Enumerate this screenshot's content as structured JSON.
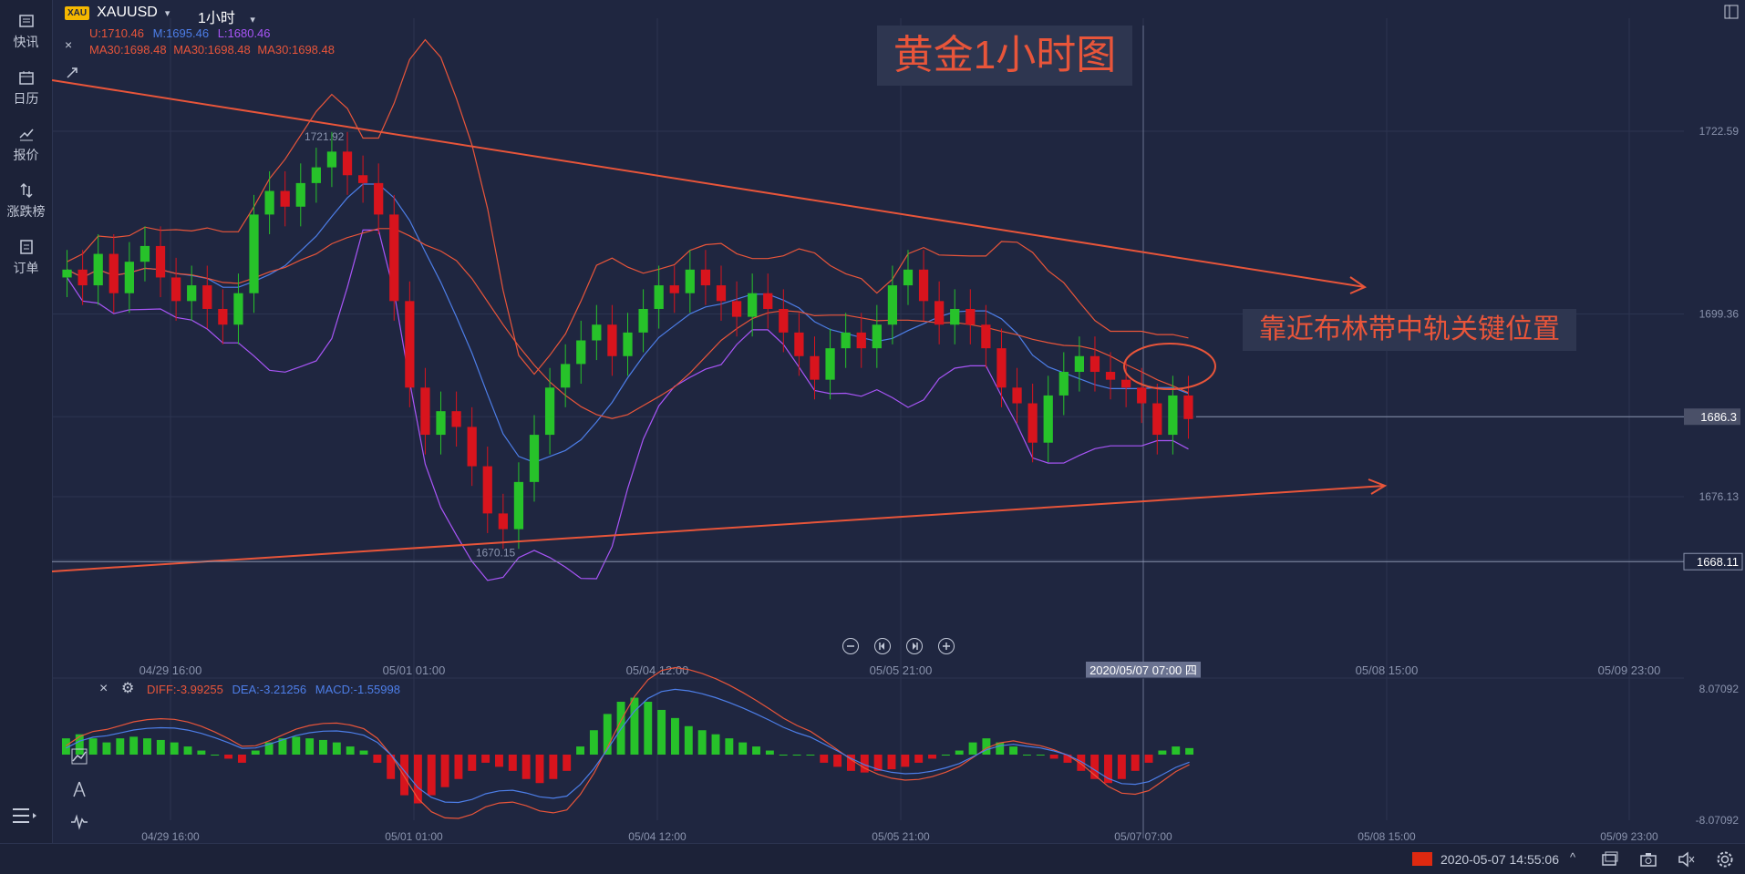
{
  "sidebar": {
    "items": [
      {
        "label": "快讯",
        "icon": "news-icon"
      },
      {
        "label": "日历",
        "icon": "calendar-icon"
      },
      {
        "label": "报价",
        "icon": "quote-chart-icon"
      },
      {
        "label": "涨跌榜",
        "icon": "updown-arrows-icon"
      },
      {
        "label": "订单",
        "icon": "order-icon"
      }
    ],
    "menu_icon": "menu-icon"
  },
  "toolbar": {
    "badge": "XAU",
    "symbol": "XAUUSD",
    "interval": "1小时"
  },
  "indicators": {
    "bb": {
      "u": "U:1710.46",
      "m": "M:1695.46",
      "l": "L:1680.46",
      "u_color": "#e8553a",
      "m_color": "#4d7ee8",
      "l_color": "#a855f7"
    },
    "ma": [
      "MA30:1698.48",
      "MA30:1698.48",
      "MA30:1698.48"
    ],
    "macd": {
      "diff": "DIFF:-3.99255",
      "dea": "DEA:-3.21256",
      "macd": "MACD:-1.55998"
    }
  },
  "annotations": {
    "title": "黄金1小时图",
    "note": "靠近布林带中轨关键位置"
  },
  "status": {
    "datetime": "2020-05-07 14:55:06",
    "flag": "china-flag-icon"
  },
  "colors": {
    "bull": "#27c22a",
    "bear": "#d8141d",
    "accent": "#e8553a",
    "background": "#1f2640",
    "grid": "#2c3450"
  },
  "chart_data": [
    {
      "type": "candlestick",
      "symbol": "XAUUSD",
      "interval": "1小时",
      "y_ticks": [
        1722.59,
        1699.36,
        1686.3,
        1676.13,
        1668.11
      ],
      "ylim": [
        1655,
        1730
      ],
      "x_ticks": [
        "04/29 16:00",
        "05/01 01:00",
        "05/04 12:00",
        "05/05 21:00",
        "2020/05/07 07:00 四",
        "05/08 15:00",
        "05/09 23:00"
      ],
      "high_label": "1721.92",
      "low_label": "1670.15",
      "current_price": "1686.3",
      "horizontal_level": "1668.11",
      "close_series": [
        1705,
        1703,
        1707,
        1702,
        1706,
        1708,
        1704,
        1701,
        1703,
        1700,
        1698,
        1702,
        1712,
        1715,
        1713,
        1716,
        1718,
        1720,
        1717,
        1716,
        1712,
        1701,
        1690,
        1684,
        1687,
        1685,
        1680,
        1674,
        1672,
        1678,
        1684,
        1690,
        1693,
        1696,
        1698,
        1694,
        1697,
        1700,
        1703,
        1702,
        1705,
        1703,
        1701,
        1699,
        1702,
        1700,
        1697,
        1694,
        1691,
        1695,
        1697,
        1695,
        1698,
        1703,
        1705,
        1701,
        1698,
        1700,
        1698,
        1695,
        1690,
        1688,
        1683,
        1689,
        1692,
        1694,
        1692,
        1691,
        1690,
        1688,
        1684,
        1689,
        1686
      ],
      "bollinger": {
        "upper": "U:1710.46",
        "middle": "M:1695.46",
        "lower": "L:1680.46"
      },
      "trendlines": [
        "descending resistance",
        "ascending support"
      ]
    },
    {
      "type": "bar",
      "name": "MACD",
      "y_ticks": [
        "8.07092",
        "-8.07092"
      ],
      "x_ticks": [
        "04/29 16:00",
        "05/01 01:00",
        "05/04 12:00",
        "05/05 21:00",
        "05/07 07:00",
        "05/08 15:00",
        "05/09 23:00"
      ],
      "histogram": [
        2,
        2.5,
        2,
        1.5,
        2,
        2.2,
        2,
        1.8,
        1.5,
        1,
        0.5,
        0,
        -0.5,
        -1,
        0.5,
        1.5,
        2,
        2.2,
        2,
        1.8,
        1.5,
        1,
        0.5,
        -1,
        -3,
        -5,
        -6,
        -5,
        -4,
        -3,
        -2,
        -1,
        -1.5,
        -2,
        -3,
        -3.5,
        -3,
        -2,
        1,
        3,
        5,
        6.5,
        7,
        6.5,
        5.5,
        4.5,
        3.5,
        3,
        2.5,
        2,
        1.5,
        1,
        0.5,
        0,
        0,
        0,
        -1,
        -1.5,
        -2,
        -2.2,
        -2,
        -1.8,
        -1.5,
        -1,
        -0.5,
        0,
        0.5,
        1.5,
        2,
        1.5,
        1,
        0,
        0,
        -0.5,
        -1,
        -2,
        -3,
        -3.5,
        -3,
        -2,
        -1,
        0.5,
        1,
        0.8
      ],
      "diff": "DIFF:-3.99255",
      "dea": "DEA:-3.21256",
      "macd": "MACD:-1.55998"
    }
  ]
}
